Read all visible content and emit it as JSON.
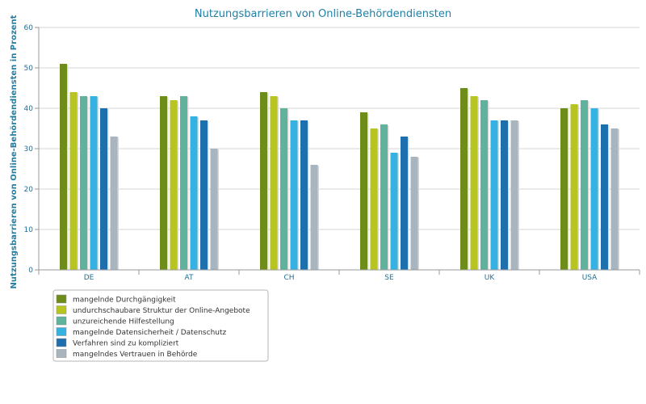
{
  "chart_data": {
    "type": "bar",
    "title": "Nutzungsbarrieren von Online-Behördendiensten",
    "xlabel": "",
    "ylabel": "Nutzungsbarrieren von Online-Behördendiensten in Prozent",
    "ylim": [
      0,
      60
    ],
    "yticks": [
      0,
      10,
      20,
      30,
      40,
      50,
      60
    ],
    "grid": true,
    "legend_position": "bottom-left",
    "categories": [
      "DE",
      "AT",
      "CH",
      "SE",
      "UK",
      "USA"
    ],
    "series": [
      {
        "name": "mangelnde Durchgängigkeit",
        "color": "#6e8c1a",
        "values": [
          51,
          43,
          44,
          39,
          45,
          40
        ]
      },
      {
        "name": "undurchschaubare Struktur der Online-Angebote",
        "color": "#b8c520",
        "values": [
          44,
          42,
          43,
          35,
          43,
          41
        ]
      },
      {
        "name": "unzureichende Hilfestellung",
        "color": "#5fb39c",
        "values": [
          43,
          43,
          40,
          36,
          42,
          42
        ]
      },
      {
        "name": "mangelnde Datensicherheit / Datenschutz",
        "color": "#35b1e2",
        "values": [
          43,
          38,
          37,
          29,
          37,
          40
        ]
      },
      {
        "name": "Verfahren sind zu kompliziert",
        "color": "#1e6fae",
        "values": [
          40,
          37,
          37,
          33,
          37,
          36
        ]
      },
      {
        "name": "mangelndes Vertrauen in Behörde",
        "color": "#a8b4be",
        "values": [
          33,
          30,
          26,
          28,
          37,
          35
        ]
      }
    ]
  }
}
